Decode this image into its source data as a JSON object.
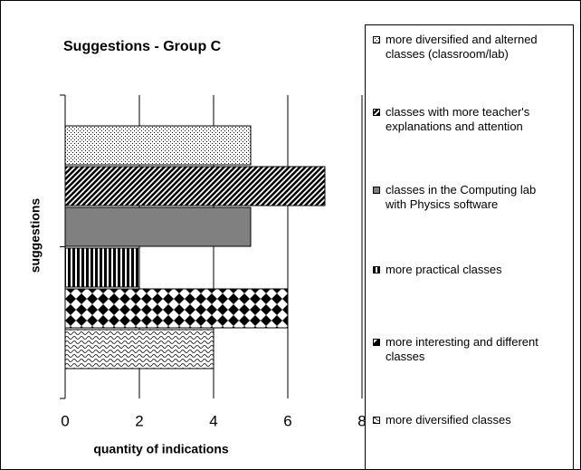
{
  "chart_data": {
    "type": "bar",
    "orientation": "horizontal",
    "title": "Suggestions - Group C",
    "x_label": "quantity of indications",
    "y_label": "suggestions",
    "xlim": [
      0,
      8
    ],
    "xticks": [
      0,
      2,
      4,
      6,
      8
    ],
    "grid": true,
    "legend": "right",
    "series": [
      {
        "name": "more diversified and alterned classes (classroom/lab)",
        "pattern": "dots",
        "values": [
          5
        ]
      },
      {
        "name": "classes with more teacher's explanations and attention",
        "pattern": "diagonal",
        "values": [
          7
        ]
      },
      {
        "name": "classes in the Computing lab with Physics software",
        "pattern": "gray",
        "values": [
          5
        ]
      },
      {
        "name": "more practical classes",
        "pattern": "vertical",
        "values": [
          2
        ]
      },
      {
        "name": "more interesting and different classes",
        "pattern": "diamond",
        "values": [
          6
        ]
      },
      {
        "name": "more diversified classes",
        "pattern": "wave",
        "values": [
          4
        ]
      }
    ]
  }
}
